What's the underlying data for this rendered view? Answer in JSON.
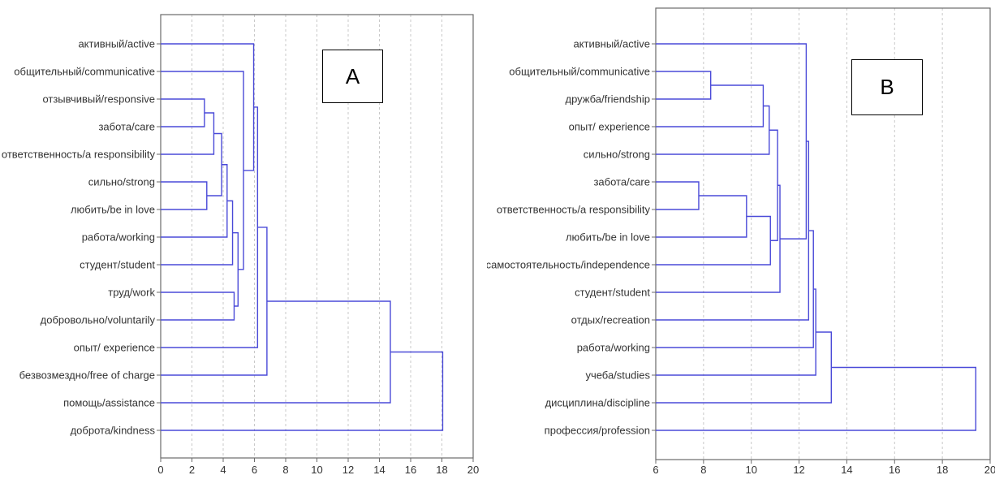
{
  "chart_data": [
    {
      "type": "dendrogram",
      "panel_letter": "A",
      "leaves": [
        "активный/active",
        "общительный/communicative",
        "отзывчивый/responsive",
        "забота/care",
        "ответственность/a responsibility",
        "сильно/strong",
        "любить/be in love",
        "работа/working",
        "студент/student",
        "труд/work",
        "добровольно/voluntarily",
        "опыт/ experience",
        "безвозмездно/free of charge",
        "помощь/assistance",
        "доброта/kindness"
      ],
      "merges": [
        {
          "a": "L2",
          "b": "L3",
          "h": 2.8
        },
        {
          "a": "L5",
          "b": "L6",
          "h": 2.95
        },
        {
          "a": "C0",
          "b": "L4",
          "h": 3.4
        },
        {
          "a": "C2",
          "b": "C1",
          "h": 3.9
        },
        {
          "a": "C3",
          "b": "L7",
          "h": 4.25
        },
        {
          "a": "L9",
          "b": "L10",
          "h": 4.7
        },
        {
          "a": "C4",
          "b": "L8",
          "h": 4.6
        },
        {
          "a": "C6",
          "b": "C5",
          "h": 4.95
        },
        {
          "a": "L1",
          "b": "C7",
          "h": 5.3
        },
        {
          "a": "L0",
          "b": "C8",
          "h": 5.95
        },
        {
          "a": "C9",
          "b": "L11",
          "h": 6.2
        },
        {
          "a": "C10",
          "b": "L12",
          "h": 6.8
        },
        {
          "a": "C11",
          "b": "L13",
          "h": 14.7
        },
        {
          "a": "C12",
          "b": "L14",
          "h": 18.05
        }
      ],
      "x_ticks": [
        "0",
        "2",
        "4",
        "6",
        "8",
        "10",
        "12",
        "14",
        "16",
        "18",
        "20"
      ],
      "xlim": [
        0,
        20
      ],
      "grid": true
    },
    {
      "type": "dendrogram",
      "panel_letter": "B",
      "leaves": [
        "активный/active",
        "общительный/communicative",
        "дружба/friendship",
        "опыт/ experience",
        "сильно/strong",
        "забота/care",
        "ответственность/a responsibility",
        "любить/be in love",
        "самостоятельность/independence",
        "студент/student",
        "отдых/recreation",
        "работа/working",
        "учеба/studies",
        "дисциплина/discipline",
        "профессия/profession"
      ],
      "merges": [
        {
          "a": "L5",
          "b": "L6",
          "h": 7.8
        },
        {
          "a": "L1",
          "b": "L2",
          "h": 8.3
        },
        {
          "a": "C0",
          "b": "L7",
          "h": 9.8
        },
        {
          "a": "C1",
          "b": "L3",
          "h": 10.5
        },
        {
          "a": "C3",
          "b": "L4",
          "h": 10.75
        },
        {
          "a": "C2",
          "b": "L8",
          "h": 10.8
        },
        {
          "a": "C4",
          "b": "C5",
          "h": 11.1
        },
        {
          "a": "C6",
          "b": "L9",
          "h": 11.2
        },
        {
          "a": "C7",
          "b": "L0",
          "h": 12.3
        },
        {
          "a": "C8",
          "b": "L10",
          "h": 12.4
        },
        {
          "a": "C9",
          "b": "L11",
          "h": 12.6
        },
        {
          "a": "C10",
          "b": "L12",
          "h": 12.7
        },
        {
          "a": "C11",
          "b": "L13",
          "h": 13.35
        },
        {
          "a": "C12",
          "b": "L14",
          "h": 19.4
        }
      ],
      "x_ticks": [
        "6",
        "8",
        "10",
        "12",
        "14",
        "16",
        "18",
        "20"
      ],
      "xlim": [
        6,
        20
      ],
      "grid": true
    }
  ],
  "colors": {
    "line": "#4a4ad8",
    "grid": "#c8c8c8",
    "frame": "#6a6a6a",
    "label": "#333333"
  }
}
